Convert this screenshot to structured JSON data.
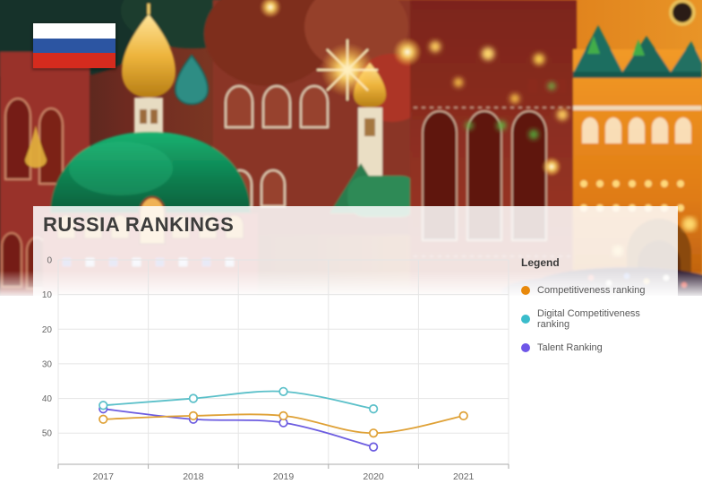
{
  "header": {
    "title": "RUSSIA RANKINGS"
  },
  "banner": {
    "country": "Russia",
    "flag_colors": [
      "#FFFFFF",
      "#2C55A2",
      "#D52B1E"
    ]
  },
  "legend": {
    "title": "Legend",
    "items": [
      {
        "label": "Competitiveness ranking",
        "color": "#E8890C"
      },
      {
        "label": "Digital Competitiveness ranking",
        "color": "#3ABCCB"
      },
      {
        "label": "Talent Ranking",
        "color": "#6E56E8"
      }
    ]
  },
  "chart_data": {
    "type": "line",
    "x": [
      "2017",
      "2018",
      "2019",
      "2020",
      "2021"
    ],
    "series": [
      {
        "name": "Competitiveness ranking",
        "color": "#DFA136",
        "values": [
          46,
          45,
          45,
          50,
          45
        ]
      },
      {
        "name": "Digital Competitiveness ranking",
        "color": "#5BC0C9",
        "values": [
          42,
          40,
          38,
          43,
          null
        ]
      },
      {
        "name": "Talent Ranking",
        "color": "#6C5CE0",
        "values": [
          43,
          46,
          47,
          54,
          null
        ]
      }
    ],
    "title": "Russia Rankings",
    "xlabel": "",
    "ylabel": "",
    "y_ticks": [
      0,
      10,
      20,
      30,
      40,
      50
    ],
    "ylim": [
      0,
      59
    ],
    "y_inverted": true,
    "grid": true,
    "legend_position": "right",
    "marker": "open-circle",
    "axis_color": "#ABABAB",
    "grid_color": "#E5E5E5",
    "tick_label_color": "#666666"
  }
}
